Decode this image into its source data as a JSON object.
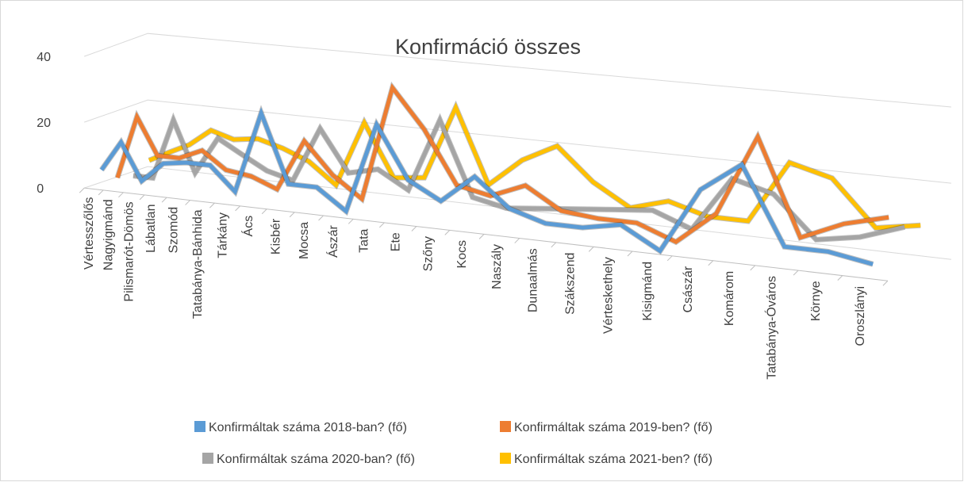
{
  "chart_data": {
    "type": "line3d",
    "title": "Konfirmáció összes",
    "categories": [
      "Vértesszőlős",
      "Nagyigmánd",
      "Pilismarót-Dömös",
      "Lábatlan",
      "Szomód",
      "Tatabánya-Bánhida",
      "Tárkány",
      "Ács",
      "Kisbér",
      "Mocsa",
      "Ászár",
      "Tata",
      "Ete",
      "Szőny",
      "Kocs",
      "Naszály",
      "Dunaalmás",
      "Szákszend",
      "Vérteskethely",
      "Kisigmánd",
      "Császár",
      "Komárom",
      "Tatabánya-Óváros",
      "Környe",
      "Oroszlányi"
    ],
    "series": [
      {
        "name": "Konfirmáltak száma 2018-ban? (fő)",
        "color": "#5b9bd5",
        "values": [
          5,
          14,
          3,
          9,
          10,
          10,
          3,
          27,
          7,
          7,
          1,
          27,
          12,
          7,
          15,
          7,
          4,
          4,
          6,
          0,
          18,
          26,
          5,
          5,
          3
        ]
      },
      {
        "name": "Konfirmáltak száma 2019-ben? (fő)",
        "color": "#ed7d31",
        "values": [
          1,
          20,
          9,
          9,
          12,
          7,
          6,
          3,
          18,
          9,
          3,
          36,
          25,
          10,
          8,
          12,
          6,
          5,
          5,
          1,
          10,
          32,
          6,
          11,
          14
        ]
      },
      {
        "name": "Konfirmáltak száma 2020-ban? (fő)",
        "color": "#a5a5a5",
        "values": [
          0,
          0,
          18,
          3,
          14,
          10,
          6,
          4,
          20,
          8,
          10,
          5,
          26,
          5,
          3,
          4,
          5,
          6,
          7,
          3,
          18,
          15,
          4,
          6,
          10
        ]
      },
      {
        "name": "Konfirmáltak száma 2021-ben? (fő)",
        "color": "#ffc000",
        "values": [
          3,
          6,
          9,
          14,
          12,
          13,
          11,
          8,
          2,
          21,
          6,
          7,
          28,
          7,
          15,
          20,
          11,
          5,
          8,
          5,
          5,
          22,
          19,
          7,
          9
        ]
      }
    ],
    "ylim": [
      0,
      40
    ],
    "yticks": [
      0,
      20,
      40
    ],
    "grid": true
  }
}
